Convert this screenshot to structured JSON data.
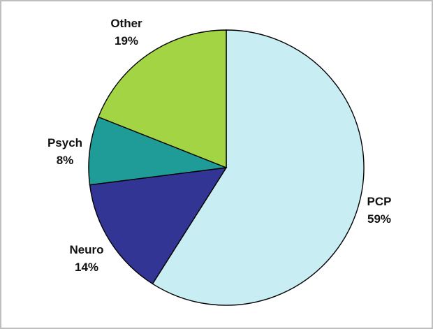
{
  "chart_data": {
    "type": "pie",
    "title": "",
    "slices": [
      {
        "label": "PCP",
        "percent_label": "59%",
        "value": 59,
        "color": "#c8eef4"
      },
      {
        "label": "Neuro",
        "percent_label": "14%",
        "value": 14,
        "color": "#323593"
      },
      {
        "label": "Psych",
        "percent_label": "8%",
        "value": 8,
        "color": "#1f9b98"
      },
      {
        "label": "Other",
        "percent_label": "19%",
        "value": 19,
        "color": "#a2d444"
      }
    ],
    "legend": "none",
    "direction": "clockwise",
    "start": "top"
  }
}
